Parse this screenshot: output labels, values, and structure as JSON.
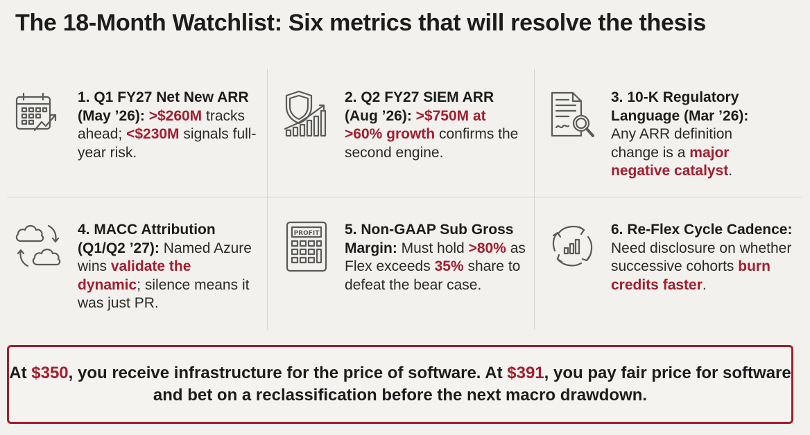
{
  "title": "The 18-Month Watchlist: Six metrics that will resolve the thesis",
  "colors": {
    "accent": "#a51d2d",
    "text": "#1c1c1c",
    "background": "#f2f1ee",
    "divider": "#d6d4cf"
  },
  "metrics": [
    {
      "icon": "calendar-growth-icon",
      "heading": "1. Q1 FY27 Net New ARR (May ’26):",
      "hl1": ">$260M",
      "t1": "tracks ahead;",
      "hl2": "<$230M",
      "t2": "signals full-year risk."
    },
    {
      "icon": "shield-bar-chart-icon",
      "heading": "2. Q2 FY27 SIEM ARR (Aug ’26):",
      "hl1": ">$750M at >60% growth",
      "t1": "confirms the second engine."
    },
    {
      "icon": "document-magnifier-icon",
      "heading": "3. 10-K Regulatory Language (Mar ’26):",
      "t1": "Any ARR definition change is a",
      "hl1": "major negative catalyst",
      "t2": "."
    },
    {
      "icon": "cloud-sync-icon",
      "heading": "4. MACC Attribution (Q1/Q2 ’27):",
      "t1": "Named Azure wins",
      "hl1": "validate the dynamic",
      "t2": "; silence means it was just PR."
    },
    {
      "icon": "profit-calculator-icon",
      "icon_label": "PROFIT",
      "heading": "5. Non-GAAP Sub Gross Margin:",
      "t1": "Must hold",
      "hl1": ">80%",
      "t2": "as Flex exceeds",
      "hl2": "35%",
      "t3": "share to defeat the bear case."
    },
    {
      "icon": "cycle-chart-icon",
      "heading": "6. Re-Flex Cycle Cadence:",
      "t1": "Need disclosure on whether successive cohorts",
      "hl1": "burn credits faster",
      "t2": "."
    }
  ],
  "callout": {
    "p1": "At",
    "price1": "$350",
    "p2": ", you receive infrastructure for the price of software. At",
    "price2": "$391",
    "p3": ", you pay fair price for software and bet on a reclassification before the next macro drawdown."
  }
}
